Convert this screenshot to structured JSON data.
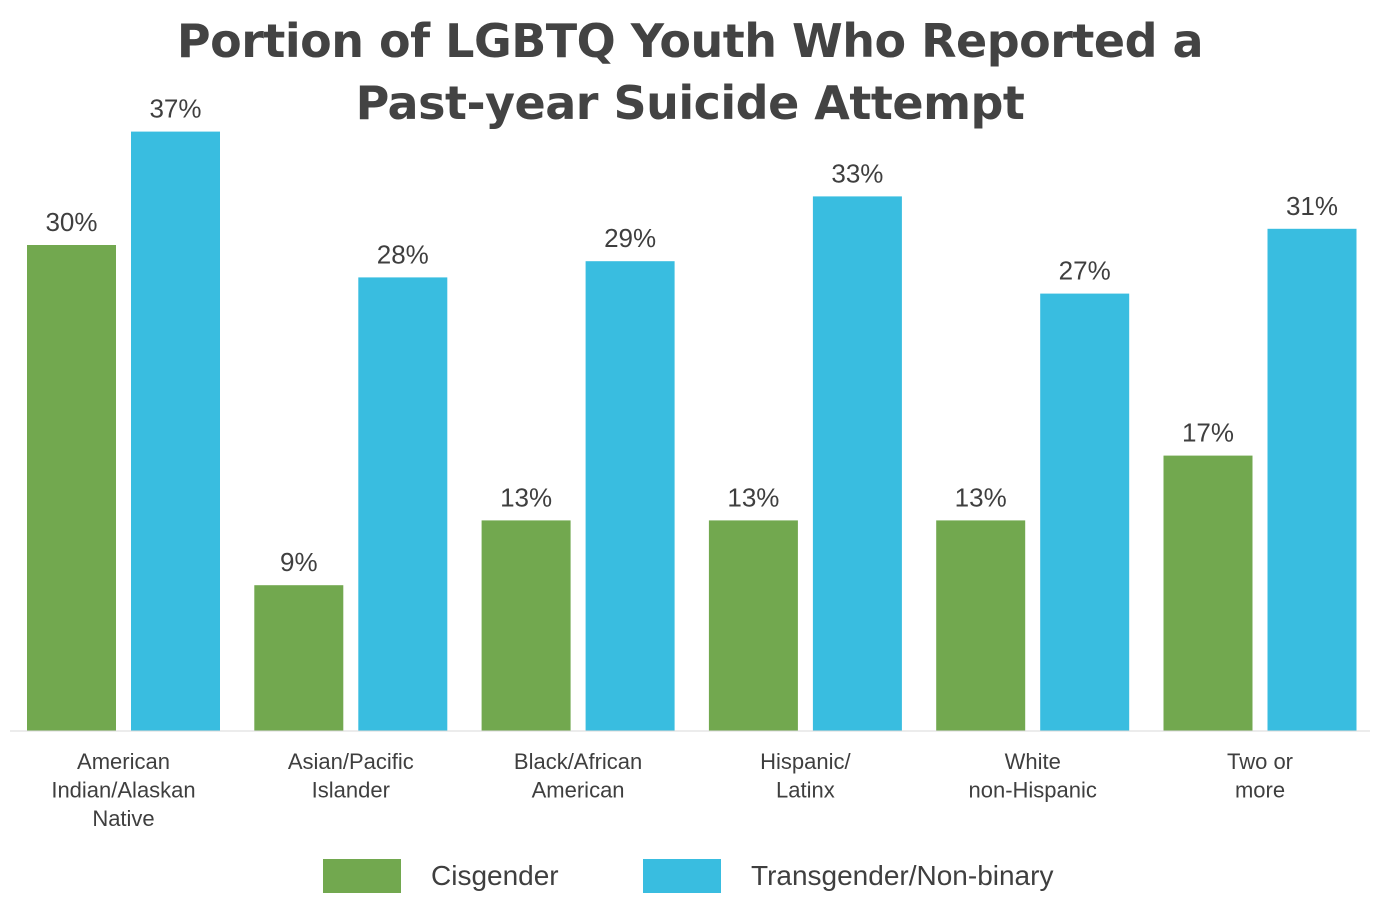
{
  "chart_data": {
    "type": "bar",
    "title_lines": [
      "Portion of LGBTQ Youth Who Reported a",
      "Past-year Suicide Attempt"
    ],
    "categories": [
      [
        "American",
        "Indian/Alaskan",
        "Native"
      ],
      [
        "Asian/Pacific",
        "Islander"
      ],
      [
        "Black/African",
        "American"
      ],
      [
        "Hispanic/",
        "Latinx"
      ],
      [
        "White",
        "non-Hispanic"
      ],
      [
        "Two or",
        "more"
      ]
    ],
    "series": [
      {
        "name": "Cisgender",
        "color": "#72a84f",
        "values": [
          30,
          9,
          13,
          13,
          13,
          17
        ]
      },
      {
        "name": "Transgender/Non-binary",
        "color": "#39bde0",
        "values": [
          37,
          28,
          29,
          33,
          27,
          31
        ]
      }
    ],
    "value_suffix": "%",
    "ylim": [
      0,
      40
    ],
    "grid": false,
    "legend_position": "bottom-center"
  }
}
